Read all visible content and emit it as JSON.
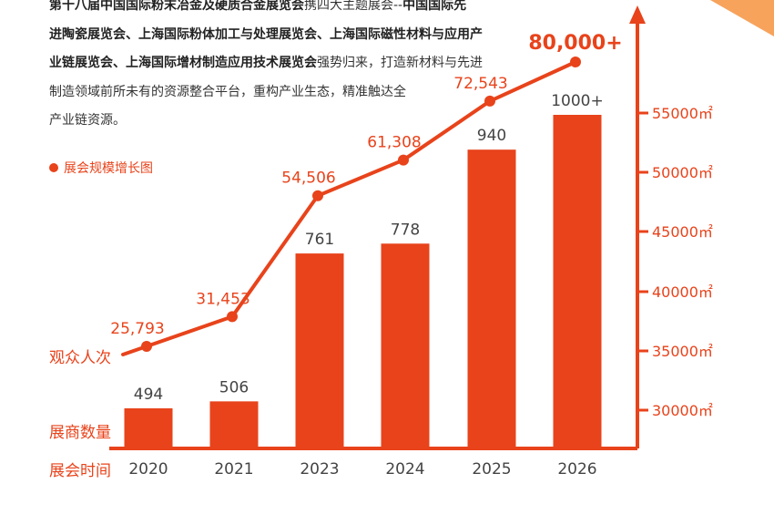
{
  "intro": {
    "line1_bold_a": "第十八届中国国际粉末冶金及硬质合金展览会",
    "line1_plain": "携四大主题展会--",
    "line1_bold_b": "中国国际先",
    "line2_bold": "进陶瓷展览会、上海国际粉体加工与处理展览会、上海国际磁性材料与应用产",
    "line3_bold": "业链展览会、上海国际增材制造应用技术展览会",
    "line3_plain": "强势归来，打造新材料与先进",
    "line4": "制造领域前所未有的资源整合平台，重构产业生态，精准触达全",
    "line5": "产业链资源。"
  },
  "legend": {
    "label": "展会规模增长图"
  },
  "row_labels": {
    "visitors": "观众人次",
    "exhibitors": "展商数量",
    "time": "展会时间"
  },
  "colors": {
    "accent": "#e8431b",
    "corner": "#f7a35c",
    "text": "#333333"
  },
  "chart_data": {
    "type": "bar",
    "title": "展会规模增长图",
    "categories": [
      "2020",
      "2021",
      "2023",
      "2024",
      "2025",
      "2026"
    ],
    "series": [
      {
        "name": "展商数量",
        "type": "bar",
        "values": [
          494,
          506,
          761,
          778,
          940,
          1000
        ],
        "labels": [
          "494",
          "506",
          "761",
          "778",
          "940",
          "1000+"
        ]
      },
      {
        "name": "观众人次",
        "type": "line",
        "values": [
          25793,
          31453,
          54506,
          61308,
          72543,
          80000
        ],
        "labels": [
          "25,793",
          "31,453",
          "54,506",
          "61,308",
          "72,543",
          "80,000+"
        ]
      }
    ],
    "bar_range": [
      290,
      1000
    ],
    "line_range": [
      25793,
      80000
    ],
    "right_axis": {
      "ticks": [
        30000,
        35000,
        40000,
        45000,
        50000,
        55000
      ],
      "tick_labels": [
        "30000㎡",
        "35000㎡",
        "40000㎡",
        "45000㎡",
        "50000㎡",
        "55000㎡"
      ]
    }
  }
}
